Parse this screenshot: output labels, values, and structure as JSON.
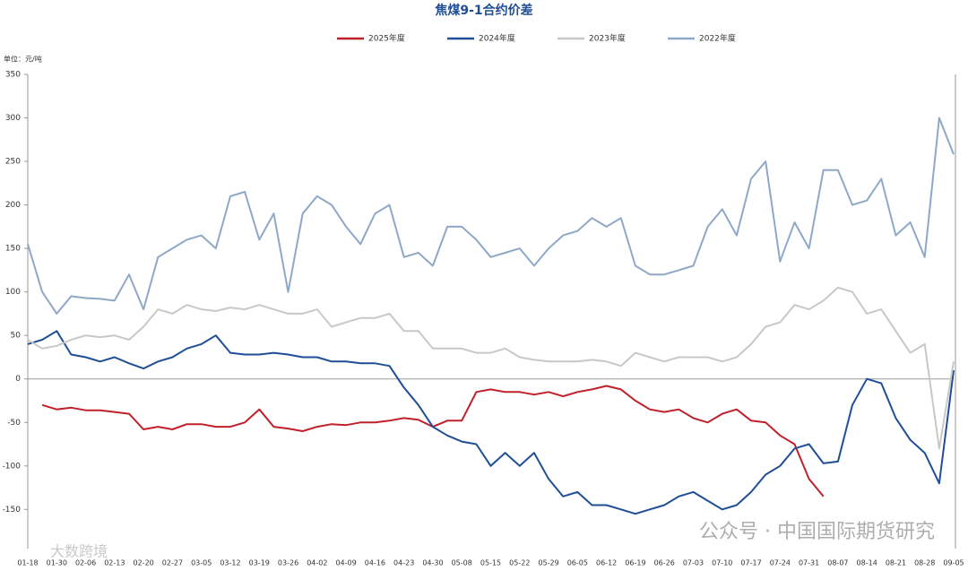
{
  "chart_data": {
    "type": "line",
    "title": "焦煤9-1合约价差",
    "y_unit_label": "单位：元/吨",
    "watermarks": [
      "公众号 · 中国国际期货研究",
      "大数跨境"
    ],
    "categories": [
      "01-18",
      null,
      "01-30",
      null,
      "02-06",
      null,
      "02-13",
      null,
      "02-20",
      null,
      "02-27",
      null,
      "03-05",
      null,
      "03-12",
      null,
      "03-19",
      null,
      "03-26",
      null,
      "04-02",
      null,
      "04-09",
      null,
      "04-16",
      null,
      "04-23",
      null,
      "04-30",
      null,
      "05-08",
      null,
      "05-15",
      null,
      "05-22",
      null,
      "05-29",
      null,
      "06-05",
      null,
      "06-12",
      null,
      "06-19",
      null,
      "06-26",
      null,
      "07-03",
      null,
      "07-10",
      null,
      "07-17",
      null,
      "07-24",
      null,
      "07-31",
      null,
      "08-07",
      null,
      "08-14",
      null,
      "08-21",
      null,
      "08-28",
      null,
      "09-05"
    ],
    "ylim": [
      -195,
      350
    ],
    "yticks": [
      350,
      300,
      250,
      200,
      150,
      100,
      50,
      0,
      -50,
      -100,
      -150
    ],
    "grid": false,
    "legend_position": "top",
    "series": [
      {
        "name": "2025年度",
        "color": "#c0202a",
        "values": [
          null,
          -30,
          -35,
          -33,
          -36,
          -36,
          -38,
          -40,
          -58,
          -55,
          -58,
          -52,
          -52,
          -55,
          -55,
          -50,
          -35,
          -55,
          -57,
          -60,
          -55,
          -52,
          -53,
          -50,
          -50,
          -48,
          -45,
          -47,
          -55,
          -48,
          -48,
          -15,
          -12,
          -15,
          -15,
          -18,
          -15,
          -20,
          -15,
          -12,
          -8,
          -12,
          -25,
          -35,
          -38,
          -35,
          -45,
          -50,
          -40,
          -35,
          -48,
          -50,
          -65,
          -75,
          -115,
          -135,
          null,
          null,
          null,
          null,
          null,
          null,
          null,
          null,
          null
        ]
      },
      {
        "name": "2024年度",
        "color": "#1f4e96",
        "values": [
          40,
          45,
          55,
          28,
          25,
          20,
          25,
          18,
          12,
          20,
          25,
          35,
          40,
          50,
          30,
          28,
          28,
          30,
          28,
          25,
          25,
          20,
          20,
          18,
          18,
          15,
          -10,
          -30,
          -55,
          -65,
          -72,
          -75,
          -100,
          -85,
          -100,
          -85,
          -115,
          -135,
          -130,
          -145,
          -145,
          -150,
          -155,
          -150,
          -145,
          -135,
          -130,
          -140,
          -150,
          -145,
          -130,
          -110,
          -100,
          -80,
          -75,
          -97,
          -95,
          -30,
          0,
          -5,
          -45,
          -70,
          -85,
          -120,
          10
        ]
      },
      {
        "name": "2023年度",
        "color": "#c8c8c8",
        "values": [
          45,
          35,
          38,
          45,
          50,
          48,
          50,
          45,
          60,
          80,
          75,
          85,
          80,
          78,
          82,
          80,
          85,
          80,
          75,
          75,
          80,
          60,
          65,
          70,
          70,
          75,
          55,
          55,
          35,
          35,
          35,
          30,
          30,
          35,
          25,
          22,
          20,
          20,
          20,
          22,
          20,
          15,
          30,
          25,
          20,
          25,
          25,
          25,
          20,
          25,
          40,
          60,
          65,
          85,
          80,
          90,
          105,
          100,
          75,
          80,
          55,
          30,
          40,
          -80,
          20
        ]
      },
      {
        "name": "2022年度",
        "color": "#8fa8c8",
        "values": [
          155,
          100,
          75,
          95,
          93,
          92,
          90,
          120,
          80,
          140,
          150,
          160,
          165,
          150,
          210,
          215,
          160,
          190,
          100,
          190,
          210,
          200,
          175,
          155,
          190,
          200,
          140,
          145,
          130,
          175,
          175,
          160,
          140,
          145,
          150,
          130,
          150,
          165,
          170,
          185,
          175,
          185,
          130,
          120,
          120,
          125,
          130,
          175,
          195,
          165,
          230,
          250,
          135,
          180,
          150,
          240,
          240,
          200,
          205,
          230,
          165,
          180,
          140,
          300,
          258
        ]
      }
    ]
  }
}
